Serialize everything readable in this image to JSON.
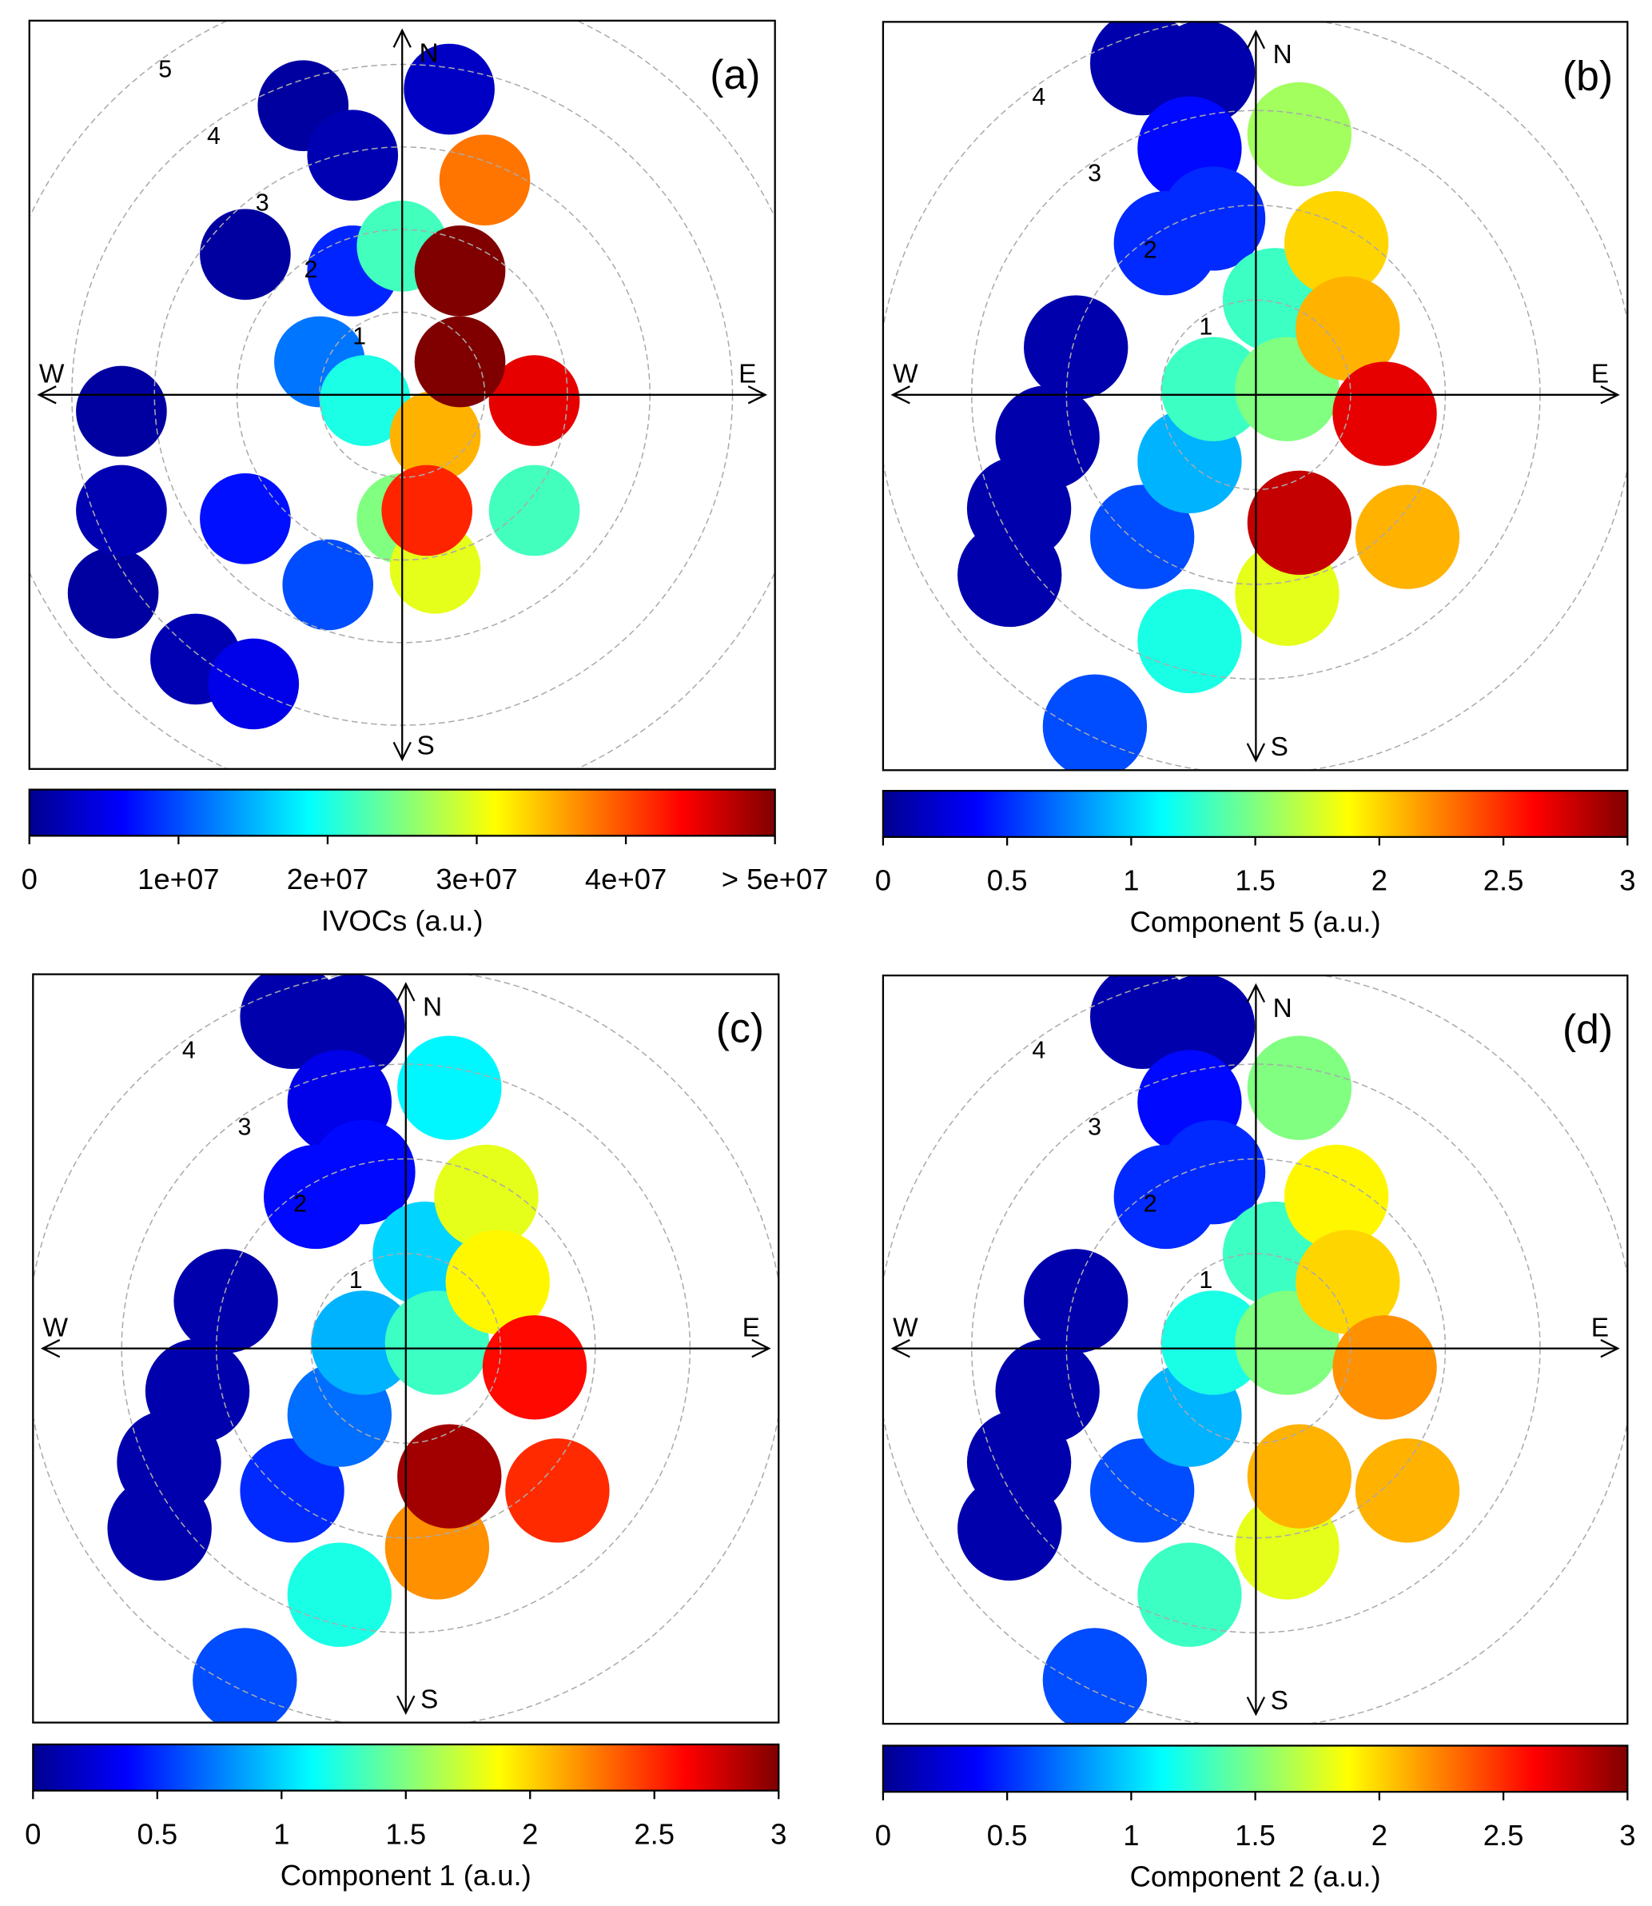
{
  "chart_data": [
    {
      "type": "heatmap",
      "subtype": "polar-plot",
      "panel_label": "(a)",
      "colorbar_title": "IVOCs (a.u.)",
      "colorbar_ticks": [
        "0",
        "1e+07",
        "2e+07",
        "3e+07",
        "4e+07",
        "> 5e+07"
      ],
      "colorbar_range": [
        0,
        50000000
      ],
      "ring_labels": [
        "1",
        "2",
        "3",
        "4",
        "5"
      ],
      "compass": {
        "n": "N",
        "s": "S",
        "e": "E",
        "w": "W"
      },
      "points": [
        {
          "x": 0.57,
          "y": 3.7,
          "v": 3000000
        },
        {
          "x": -1.2,
          "y": 3.5,
          "v": 1000000
        },
        {
          "x": -0.6,
          "y": 2.9,
          "v": 2000000
        },
        {
          "x": -1.9,
          "y": 1.7,
          "v": 1000000
        },
        {
          "x": -3.4,
          "y": -0.2,
          "v": 1000000
        },
        {
          "x": -3.4,
          "y": -1.4,
          "v": 2000000
        },
        {
          "x": -3.5,
          "y": -2.4,
          "v": 1000000
        },
        {
          "x": -2.5,
          "y": -3.2,
          "v": 2000000
        },
        {
          "x": -1.8,
          "y": -3.5,
          "v": 5000000
        },
        {
          "x": -1.9,
          "y": -1.5,
          "v": 7000000
        },
        {
          "x": -0.9,
          "y": -2.3,
          "v": 10000000
        },
        {
          "x": -1.0,
          "y": 0.4,
          "v": 12000000
        },
        {
          "x": -0.6,
          "y": 1.5,
          "v": 8000000
        },
        {
          "x": -0.45,
          "y": -0.07,
          "v": 20000000
        },
        {
          "x": 0,
          "y": -1.5,
          "v": 25000000
        },
        {
          "x": 0,
          "y": 1.8,
          "v": 22000000
        },
        {
          "x": 1.6,
          "y": -1.4,
          "v": 22000000
        },
        {
          "x": 0.4,
          "y": -2.1,
          "v": 30000000
        },
        {
          "x": 0.4,
          "y": -0.5,
          "v": 35000000
        },
        {
          "x": 1.0,
          "y": 2.6,
          "v": 38000000
        },
        {
          "x": 0.3,
          "y": -1.4,
          "v": 42000000
        },
        {
          "x": 1.6,
          "y": -0.07,
          "v": 45000000
        },
        {
          "x": 0.7,
          "y": 1.5,
          "v": 50000000
        },
        {
          "x": 0.7,
          "y": 0.4,
          "v": 50000000
        }
      ]
    },
    {
      "type": "heatmap",
      "subtype": "polar-plot",
      "panel_label": "(b)",
      "colorbar_title": "Component 5 (a.u.)",
      "colorbar_ticks": [
        "0",
        "0.5",
        "1",
        "1.5",
        "2",
        "2.5",
        "3"
      ],
      "colorbar_range": [
        0,
        3
      ],
      "ring_labels": [
        "1",
        "2",
        "3",
        "4"
      ],
      "compass": {
        "n": "N",
        "s": "S",
        "e": "E",
        "w": "W"
      },
      "points": [
        {
          "x": -1.2,
          "y": 3.5,
          "v": 0.1
        },
        {
          "x": -0.56,
          "y": 3.4,
          "v": 0.1
        },
        {
          "x": -0.7,
          "y": 2.6,
          "v": 0.4
        },
        {
          "x": -0.95,
          "y": 1.6,
          "v": 0.5
        },
        {
          "x": -1.9,
          "y": 0.5,
          "v": 0.1
        },
        {
          "x": -2.2,
          "y": -0.45,
          "v": 0.1
        },
        {
          "x": -2.5,
          "y": -1.2,
          "v": 0.1
        },
        {
          "x": -2.6,
          "y": -1.9,
          "v": 0.1
        },
        {
          "x": -1.2,
          "y": -1.5,
          "v": 0.6
        },
        {
          "x": -0.7,
          "y": -0.7,
          "v": 0.9
        },
        {
          "x": -0.45,
          "y": 1.86,
          "v": 0.5
        },
        {
          "x": -0.45,
          "y": 0.06,
          "v": 1.3
        },
        {
          "x": 0.2,
          "y": 1.0,
          "v": 1.3
        },
        {
          "x": 0.33,
          "y": 0.06,
          "v": 1.5
        },
        {
          "x": 0.46,
          "y": 2.75,
          "v": 1.6
        },
        {
          "x": -0.7,
          "y": -2.6,
          "v": 1.2
        },
        {
          "x": -1.7,
          "y": -3.5,
          "v": 0.6
        },
        {
          "x": 0.33,
          "y": -2.1,
          "v": 1.8
        },
        {
          "x": 0.85,
          "y": 1.6,
          "v": 2.0
        },
        {
          "x": 0.97,
          "y": 0.7,
          "v": 2.1
        },
        {
          "x": 1.6,
          "y": -1.5,
          "v": 2.1
        },
        {
          "x": 1.36,
          "y": -0.2,
          "v": 2.7
        },
        {
          "x": 0.46,
          "y": -1.35,
          "v": 2.8
        }
      ]
    },
    {
      "type": "heatmap",
      "subtype": "polar-plot",
      "panel_label": "(c)",
      "colorbar_title": "Component 1 (a.u.)",
      "colorbar_ticks": [
        "0",
        "0.5",
        "1",
        "1.5",
        "2",
        "2.5",
        "3"
      ],
      "colorbar_range": [
        0,
        3
      ],
      "ring_labels": [
        "1",
        "2",
        "3",
        "4"
      ],
      "compass": {
        "n": "N",
        "s": "S",
        "e": "E",
        "w": "W"
      },
      "points": [
        {
          "x": -1.2,
          "y": 3.5,
          "v": 0.1
        },
        {
          "x": -0.56,
          "y": 3.4,
          "v": 0.1
        },
        {
          "x": -0.7,
          "y": 2.6,
          "v": 0.3
        },
        {
          "x": -0.95,
          "y": 1.6,
          "v": 0.4
        },
        {
          "x": -1.9,
          "y": 0.5,
          "v": 0.1
        },
        {
          "x": -2.2,
          "y": -0.45,
          "v": 0.1
        },
        {
          "x": -2.5,
          "y": -1.2,
          "v": 0.1
        },
        {
          "x": -2.6,
          "y": -1.9,
          "v": 0.1
        },
        {
          "x": -1.2,
          "y": -1.5,
          "v": 0.5
        },
        {
          "x": -0.7,
          "y": -0.7,
          "v": 0.7
        },
        {
          "x": -0.45,
          "y": 1.86,
          "v": 0.4
        },
        {
          "x": -0.45,
          "y": 0.06,
          "v": 0.9
        },
        {
          "x": 0.2,
          "y": 1.0,
          "v": 1.0
        },
        {
          "x": 0.33,
          "y": 0.06,
          "v": 1.3
        },
        {
          "x": 0.46,
          "y": 2.75,
          "v": 1.1
        },
        {
          "x": -0.7,
          "y": -2.6,
          "v": 1.2
        },
        {
          "x": -1.7,
          "y": -3.5,
          "v": 0.6
        },
        {
          "x": 0.33,
          "y": -2.1,
          "v": 2.2
        },
        {
          "x": 0.85,
          "y": 1.6,
          "v": 1.8
        },
        {
          "x": 0.97,
          "y": 0.7,
          "v": 1.9
        },
        {
          "x": 1.6,
          "y": -1.5,
          "v": 2.5
        },
        {
          "x": 1.36,
          "y": -0.2,
          "v": 2.6
        },
        {
          "x": 0.46,
          "y": -1.35,
          "v": 2.9
        }
      ]
    },
    {
      "type": "heatmap",
      "subtype": "polar-plot",
      "panel_label": "(d)",
      "colorbar_title": "Component 2 (a.u.)",
      "colorbar_ticks": [
        "0",
        "0.5",
        "1",
        "1.5",
        "2",
        "2.5",
        "3"
      ],
      "colorbar_range": [
        0,
        3
      ],
      "ring_labels": [
        "1",
        "2",
        "3",
        "4"
      ],
      "compass": {
        "n": "N",
        "s": "S",
        "e": "E",
        "w": "W"
      },
      "points": [
        {
          "x": -1.2,
          "y": 3.5,
          "v": 0.1
        },
        {
          "x": -0.56,
          "y": 3.4,
          "v": 0.1
        },
        {
          "x": -0.7,
          "y": 2.6,
          "v": 0.4
        },
        {
          "x": -0.95,
          "y": 1.6,
          "v": 0.5
        },
        {
          "x": -1.9,
          "y": 0.5,
          "v": 0.1
        },
        {
          "x": -2.2,
          "y": -0.45,
          "v": 0.1
        },
        {
          "x": -2.5,
          "y": -1.2,
          "v": 0.1
        },
        {
          "x": -2.6,
          "y": -1.9,
          "v": 0.1
        },
        {
          "x": -1.2,
          "y": -1.5,
          "v": 0.6
        },
        {
          "x": -0.7,
          "y": -0.7,
          "v": 0.9
        },
        {
          "x": -0.45,
          "y": 1.86,
          "v": 0.5
        },
        {
          "x": -0.45,
          "y": 0.06,
          "v": 1.2
        },
        {
          "x": 0.2,
          "y": 1.0,
          "v": 1.3
        },
        {
          "x": 0.33,
          "y": 0.06,
          "v": 1.5
        },
        {
          "x": 0.46,
          "y": 2.75,
          "v": 1.5
        },
        {
          "x": -0.7,
          "y": -2.6,
          "v": 1.3
        },
        {
          "x": -1.7,
          "y": -3.5,
          "v": 0.6
        },
        {
          "x": 0.33,
          "y": -2.1,
          "v": 1.8
        },
        {
          "x": 0.85,
          "y": 1.6,
          "v": 1.9
        },
        {
          "x": 0.97,
          "y": 0.7,
          "v": 2.0
        },
        {
          "x": 1.6,
          "y": -1.5,
          "v": 2.1
        },
        {
          "x": 1.36,
          "y": -0.2,
          "v": 2.2
        },
        {
          "x": 0.46,
          "y": -1.35,
          "v": 2.1
        }
      ]
    }
  ]
}
